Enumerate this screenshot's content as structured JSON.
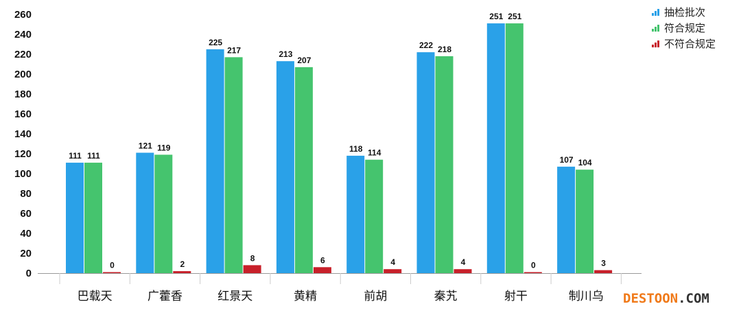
{
  "chart_data": {
    "type": "bar",
    "categories": [
      "巴载天",
      "广藿香",
      "红景天",
      "黄精",
      "前胡",
      "秦艽",
      "射干",
      "制川乌"
    ],
    "series": [
      {
        "name": "抽检批次",
        "color": "#2aa1e8",
        "values": [
          111,
          121,
          225,
          213,
          118,
          222,
          251,
          107
        ]
      },
      {
        "name": "符合规定",
        "color": "#45c46e",
        "values": [
          111,
          119,
          217,
          207,
          114,
          218,
          251,
          104
        ]
      },
      {
        "name": "不符合规定",
        "color": "#c8202a",
        "values": [
          0,
          2,
          8,
          6,
          4,
          4,
          0,
          3
        ]
      }
    ],
    "ylim": [
      0,
      260
    ],
    "yticks": [
      0,
      20,
      40,
      60,
      80,
      100,
      120,
      140,
      160,
      180,
      200,
      220,
      240,
      260
    ],
    "legend_position": "top-right",
    "grid": false
  },
  "watermark": {
    "part1": "DESTOON",
    "part2": ".COM"
  }
}
